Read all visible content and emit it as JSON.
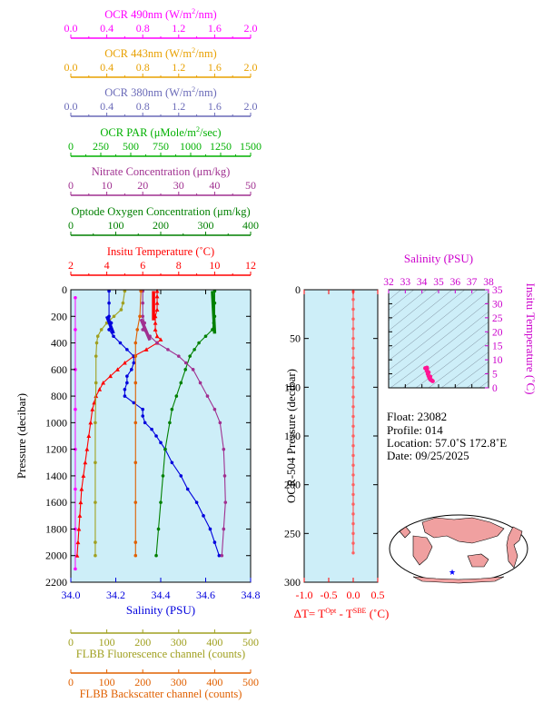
{
  "colors": {
    "ocr490": "#ff00ff",
    "ocr443": "#e8a000",
    "ocr380": "#6a6ab8",
    "par": "#00b000",
    "nitrate": "#a03090",
    "oxygen": "#008000",
    "temperature": "#ff0000",
    "salinity": "#0000dd",
    "fluorescence": "#a0a020",
    "backscatter": "#e06000",
    "panel_bg": "#cdeef8",
    "tsdiff": "#ff6060",
    "ts_points": "#ff1493",
    "land": "#f0a0a0",
    "ocean": "#ffffff",
    "float_marker": "#0000ff"
  },
  "top_axes": [
    {
      "id": "ocr490",
      "label_html": "OCR 490nm (W/m<tspan dy=\"-5\" font-size=\"8\">2</tspan><tspan dy=\"5\">/nm)</tspan>",
      "label": "OCR 490nm (W/m2/nm)",
      "ticks": [
        "0.0",
        "0.4",
        "0.8",
        "1.2",
        "1.6",
        "2.0"
      ],
      "min": 0,
      "max": 2,
      "color_key": "ocr490"
    },
    {
      "id": "ocr443",
      "label_html": "OCR 443nm (W/m<tspan dy=\"-5\" font-size=\"8\">2</tspan><tspan dy=\"5\">/nm)</tspan>",
      "label": "OCR 443nm (W/m2/nm)",
      "ticks": [
        "0.0",
        "0.4",
        "0.8",
        "1.2",
        "1.6",
        "2.0"
      ],
      "min": 0,
      "max": 2,
      "color_key": "ocr443"
    },
    {
      "id": "ocr380",
      "label_html": "OCR 380nm (W/m<tspan dy=\"-5\" font-size=\"8\">2</tspan><tspan dy=\"5\">/nm)</tspan>",
      "label": "OCR 380nm (W/m2/nm)",
      "ticks": [
        "0.0",
        "0.4",
        "0.8",
        "1.2",
        "1.6",
        "2.0"
      ],
      "min": 0,
      "max": 2,
      "color_key": "ocr380"
    },
    {
      "id": "par",
      "label_html": "OCR PAR (μMole/m<tspan dy=\"-5\" font-size=\"8\">2</tspan><tspan dy=\"5\">/sec)</tspan>",
      "label": "OCR PAR (μMole/m2/sec)",
      "ticks": [
        "0",
        "250",
        "500",
        "750",
        "1000",
        "1250",
        "1500"
      ],
      "min": 0,
      "max": 1500,
      "color_key": "par"
    },
    {
      "id": "nitrate",
      "label_html": "Nitrate Concentration (μm/kg)",
      "label": "Nitrate Concentration (μm/kg)",
      "ticks": [
        "0",
        "10",
        "20",
        "30",
        "40",
        "50"
      ],
      "min": 0,
      "max": 50,
      "color_key": "nitrate"
    },
    {
      "id": "oxygen",
      "label_html": "Optode Oxygen Concentration (μm/kg)",
      "label": "Optode Oxygen Concentration (μm/kg)",
      "ticks": [
        "0",
        "100",
        "200",
        "300",
        "400"
      ],
      "min": 0,
      "max": 400,
      "color_key": "oxygen"
    },
    {
      "id": "temperature",
      "label_html": "Insitu Temperature (˚C)",
      "label": "Insitu Temperature (˚C)",
      "ticks": [
        "2",
        "4",
        "6",
        "8",
        "10",
        "12"
      ],
      "min": 2,
      "max": 12,
      "color_key": "temperature"
    }
  ],
  "bottom_axes": [
    {
      "id": "fluorescence",
      "label": "FLBB Fluorescence channel (counts)",
      "ticks": [
        "0",
        "100",
        "200",
        "300",
        "400",
        "500"
      ],
      "color_key": "fluorescence"
    },
    {
      "id": "backscatter",
      "label": "FLBB Backscatter channel (counts)",
      "ticks": [
        "0",
        "100",
        "200",
        "300",
        "400",
        "500"
      ],
      "color_key": "backscatter"
    }
  ],
  "main_plot": {
    "ylabel": "Pressure (decibar)",
    "xlabel_salinity": "Salinity (PSU)",
    "y_ticks": [
      "0",
      "200",
      "400",
      "600",
      "800",
      "1000",
      "1200",
      "1400",
      "1600",
      "1800",
      "2000",
      "2200"
    ],
    "sal_ticks": [
      "34.0",
      "34.2",
      "34.4",
      "34.6",
      "34.8"
    ]
  },
  "chart_data": {
    "type": "line",
    "y_axis": {
      "label": "Pressure (decibar)",
      "range": [
        0,
        2200
      ],
      "inverted": true
    },
    "series": [
      {
        "name": "Insitu Temperature",
        "unit": "˚C",
        "x_range": [
          2,
          12
        ],
        "color_key": "temperature",
        "points": [
          [
            6.8,
            10
          ],
          [
            6.8,
            50
          ],
          [
            6.8,
            100
          ],
          [
            6.8,
            150
          ],
          [
            6.7,
            200
          ],
          [
            6.7,
            250
          ],
          [
            6.7,
            300
          ],
          [
            6.8,
            350
          ],
          [
            7.0,
            375
          ],
          [
            6.8,
            400
          ],
          [
            6.2,
            450
          ],
          [
            5.5,
            500
          ],
          [
            5.0,
            550
          ],
          [
            4.6,
            600
          ],
          [
            4.2,
            650
          ],
          [
            3.8,
            700
          ],
          [
            3.6,
            750
          ],
          [
            3.4,
            800
          ],
          [
            3.3,
            850
          ],
          [
            3.2,
            900
          ],
          [
            3.1,
            1000
          ],
          [
            3.0,
            1100
          ],
          [
            2.9,
            1200
          ],
          [
            2.8,
            1300
          ],
          [
            2.7,
            1400
          ],
          [
            2.6,
            1500
          ],
          [
            2.55,
            1600
          ],
          [
            2.5,
            1700
          ],
          [
            2.45,
            1800
          ],
          [
            2.4,
            1900
          ],
          [
            2.35,
            2000
          ]
        ]
      },
      {
        "name": "Salinity",
        "unit": "PSU",
        "x_range": [
          34.0,
          34.8
        ],
        "color_key": "salinity",
        "points": [
          [
            34.17,
            10
          ],
          [
            34.17,
            100
          ],
          [
            34.17,
            200
          ],
          [
            34.18,
            250
          ],
          [
            34.17,
            300
          ],
          [
            34.19,
            350
          ],
          [
            34.22,
            400
          ],
          [
            34.25,
            450
          ],
          [
            34.28,
            500
          ],
          [
            34.28,
            550
          ],
          [
            34.27,
            600
          ],
          [
            34.25,
            650
          ],
          [
            34.25,
            700
          ],
          [
            34.24,
            750
          ],
          [
            34.24,
            800
          ],
          [
            34.28,
            850
          ],
          [
            34.32,
            900
          ],
          [
            34.32,
            950
          ],
          [
            34.33,
            1000
          ],
          [
            34.36,
            1050
          ],
          [
            34.38,
            1100
          ],
          [
            34.4,
            1150
          ],
          [
            34.42,
            1200
          ],
          [
            34.45,
            1300
          ],
          [
            34.49,
            1400
          ],
          [
            34.52,
            1500
          ],
          [
            34.56,
            1600
          ],
          [
            34.59,
            1700
          ],
          [
            34.62,
            1800
          ],
          [
            34.64,
            1900
          ],
          [
            34.66,
            2000
          ]
        ]
      },
      {
        "name": "Optode Oxygen Concentration",
        "unit": "μm/kg",
        "x_range": [
          0,
          400
        ],
        "color_key": "oxygen",
        "points": [
          [
            320,
            10
          ],
          [
            320,
            100
          ],
          [
            320,
            200
          ],
          [
            318,
            250
          ],
          [
            315,
            300
          ],
          [
            300,
            350
          ],
          [
            285,
            400
          ],
          [
            275,
            450
          ],
          [
            265,
            500
          ],
          [
            255,
            600
          ],
          [
            245,
            700
          ],
          [
            235,
            800
          ],
          [
            225,
            900
          ],
          [
            220,
            1000
          ],
          [
            210,
            1200
          ],
          [
            205,
            1400
          ],
          [
            200,
            1600
          ],
          [
            195,
            1800
          ],
          [
            190,
            2000
          ]
        ]
      },
      {
        "name": "Nitrate Concentration",
        "unit": "μm/kg",
        "x_range": [
          0,
          50
        ],
        "color_key": "nitrate",
        "points": [
          [
            20,
            10
          ],
          [
            20,
            100
          ],
          [
            20,
            200
          ],
          [
            20.5,
            250
          ],
          [
            20,
            300
          ],
          [
            22,
            350
          ],
          [
            24,
            400
          ],
          [
            27,
            450
          ],
          [
            30,
            500
          ],
          [
            32,
            550
          ],
          [
            34,
            600
          ],
          [
            36,
            700
          ],
          [
            38,
            800
          ],
          [
            40,
            900
          ],
          [
            41.5,
            1000
          ],
          [
            42.5,
            1200
          ],
          [
            42.8,
            1400
          ],
          [
            43,
            1600
          ],
          [
            42.5,
            1800
          ],
          [
            42,
            2000
          ]
        ]
      },
      {
        "name": "OCR 490nm",
        "unit": "W/m2/nm",
        "x_range": [
          0,
          2
        ],
        "color_key": "ocr490",
        "points": [
          [
            0.05,
            60
          ],
          [
            0.05,
            300
          ],
          [
            0.05,
            600
          ],
          [
            0.05,
            900
          ],
          [
            0.05,
            1200
          ],
          [
            0.05,
            1500
          ],
          [
            0.05,
            1800
          ],
          [
            0.05,
            2100
          ]
        ]
      },
      {
        "name": "FLBB Fluorescence channel",
        "unit": "counts",
        "x_range": [
          0,
          500
        ],
        "color_key": "fluorescence",
        "points": [
          [
            150,
            10
          ],
          [
            145,
            100
          ],
          [
            140,
            150
          ],
          [
            120,
            200
          ],
          [
            100,
            250
          ],
          [
            85,
            300
          ],
          [
            75,
            350
          ],
          [
            72,
            400
          ],
          [
            70,
            500
          ],
          [
            70,
            700
          ],
          [
            68,
            1000
          ],
          [
            68,
            1300
          ],
          [
            68,
            1600
          ],
          [
            68,
            1900
          ],
          [
            68,
            2000
          ]
        ]
      },
      {
        "name": "FLBB Backscatter channel",
        "unit": "counts",
        "x_range": [
          0,
          500
        ],
        "color_key": "backscatter",
        "points": [
          [
            195,
            10
          ],
          [
            192,
            200
          ],
          [
            185,
            300
          ],
          [
            180,
            400
          ],
          [
            180,
            500
          ],
          [
            180,
            700
          ],
          [
            180,
            1000
          ],
          [
            180,
            1300
          ],
          [
            180,
            1600
          ],
          [
            180,
            1900
          ],
          [
            180,
            2000
          ]
        ]
      }
    ]
  },
  "ts_diff": {
    "ylabel": "OCR-504 Pressure (decibar)",
    "y_ticks": [
      "0",
      "50",
      "100",
      "150",
      "200",
      "250",
      "300"
    ],
    "x_ticks": [
      "-1.0",
      "-0.5",
      "0.0",
      "0.5"
    ],
    "xlabel_html": "ΔT= T<tspan dy=\"-5\" font-size=\"8\">Opt</tspan><tspan dy=\"5\"> - T</tspan><tspan dy=\"-5\" font-size=\"8\">SBE</tspan><tspan dy=\"5\"> (˚C)</tspan>",
    "xlabel": "ΔT= TOpt - TSBE (˚C)",
    "chart_data": {
      "type": "line",
      "x_range": [
        -1.0,
        0.5
      ],
      "y_range": [
        0,
        300
      ],
      "points": [
        [
          0.0,
          2
        ],
        [
          0.0,
          10
        ],
        [
          0.0,
          20
        ],
        [
          0.0,
          30
        ],
        [
          0.0,
          40
        ],
        [
          0.0,
          50
        ],
        [
          0.0,
          60
        ],
        [
          0.0,
          70
        ],
        [
          0.0,
          80
        ],
        [
          0.0,
          90
        ],
        [
          0.0,
          100
        ],
        [
          0.0,
          110
        ],
        [
          0.0,
          120
        ],
        [
          0.0,
          130
        ],
        [
          0.0,
          140
        ],
        [
          0.0,
          150
        ],
        [
          0.0,
          160
        ],
        [
          0.0,
          170
        ],
        [
          0.0,
          180
        ],
        [
          0.0,
          190
        ],
        [
          0.0,
          200
        ],
        [
          0.0,
          210
        ],
        [
          0.0,
          220
        ],
        [
          0.0,
          230
        ],
        [
          0.0,
          240
        ],
        [
          0.0,
          250
        ],
        [
          0.0,
          260
        ],
        [
          0.0,
          270
        ]
      ]
    }
  },
  "ts_plot": {
    "title": "Salinity (PSU)",
    "ylabel": "Insitu Temperature (˚C)",
    "x_ticks": [
      "32",
      "33",
      "34",
      "35",
      "36",
      "37",
      "38"
    ],
    "y_ticks": [
      "0",
      "5",
      "10",
      "15",
      "20",
      "25",
      "30",
      "35"
    ],
    "chart_data": {
      "type": "scatter",
      "x_range": [
        32,
        38
      ],
      "y_range": [
        0,
        35
      ],
      "points": [
        [
          34.2,
          7
        ],
        [
          34.3,
          7.2
        ],
        [
          34.25,
          6.8
        ],
        [
          34.3,
          6
        ],
        [
          34.35,
          5
        ],
        [
          34.4,
          4.2
        ],
        [
          34.45,
          3.5
        ],
        [
          34.5,
          3
        ],
        [
          34.55,
          2.8
        ],
        [
          34.6,
          2.6
        ],
        [
          34.65,
          2.4
        ],
        [
          34.3,
          6.5
        ],
        [
          34.4,
          5.5
        ],
        [
          34.5,
          4
        ]
      ]
    }
  },
  "info": {
    "float": "Float:  23082",
    "profile": "Profile:  014",
    "location": "Location:  57.0˚S  172.8˚E",
    "date": "Date:  09/25/2025"
  },
  "map": {
    "float_lat": -57.0,
    "float_lon": 172.8
  }
}
